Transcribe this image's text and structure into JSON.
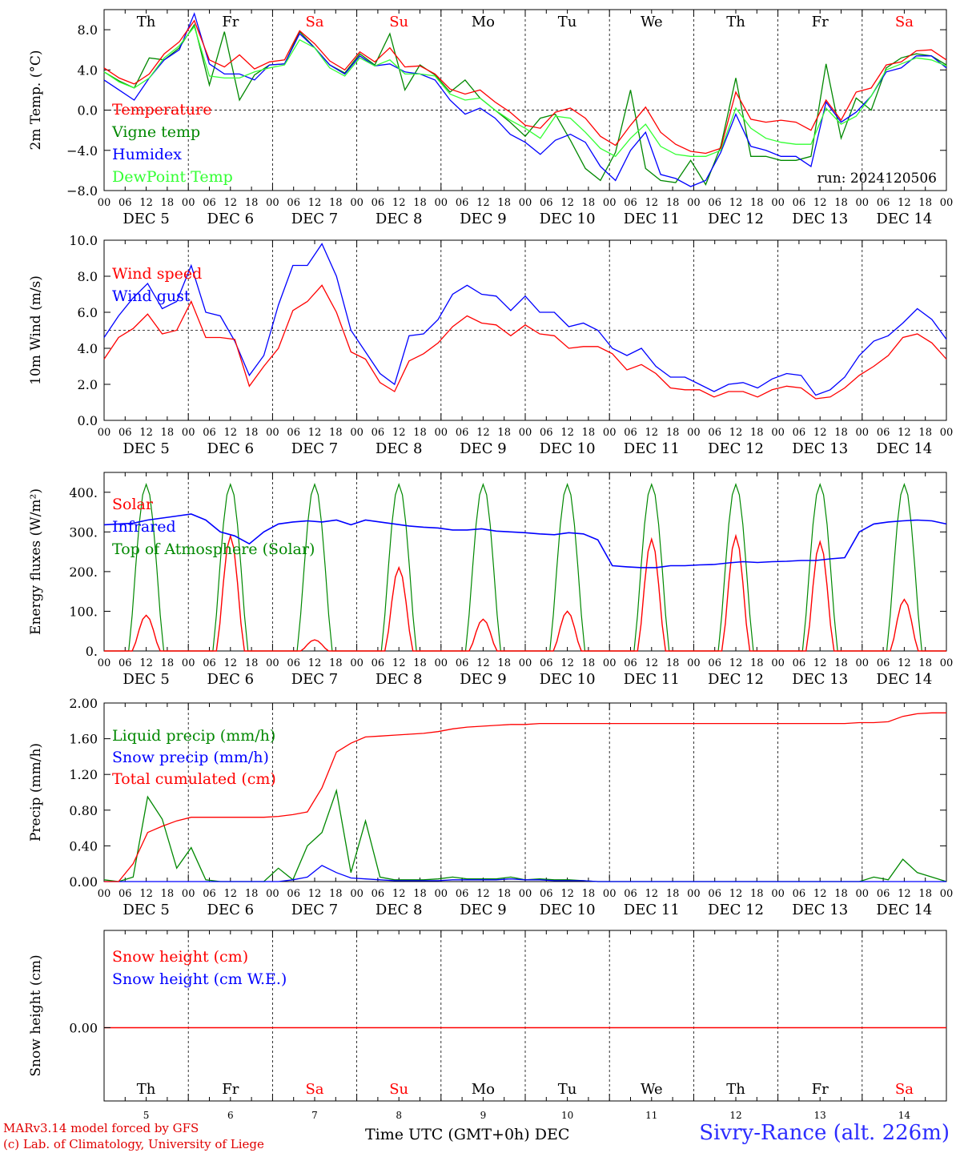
{
  "footer": {
    "credit1": "MARv3.14 model forced by GFS",
    "credit2": "(c) Lab. of Climatology, University of Liege",
    "time_label": "Time UTC (GMT+0h) DEC",
    "station": "Sivry-Rance (alt. 226m)"
  },
  "time_axis": {
    "hour_ticks": [
      "00",
      "06",
      "12",
      "18"
    ],
    "date_labels": [
      "DEC  5",
      "DEC  6",
      "DEC  7",
      "DEC  8",
      "DEC  9",
      "DEC 10",
      "DEC 11",
      "DEC 12",
      "DEC 13",
      "DEC 14"
    ],
    "weekdays": [
      "Th",
      "Fr",
      "Sa",
      "Su",
      "Mo",
      "Tu",
      "We",
      "Th",
      "Fr",
      "Sa"
    ],
    "weekday_colors": [
      "#000000",
      "#000000",
      "#ff0000",
      "#ff0000",
      "#000000",
      "#000000",
      "#000000",
      "#000000",
      "#000000",
      "#ff0000"
    ],
    "day_numbers": [
      "5",
      "6",
      "7",
      "8",
      "9",
      "10",
      "11",
      "12",
      "13",
      "14"
    ]
  },
  "colors": {
    "red": "#ff0000",
    "green": "#008800",
    "blue": "#0000ff",
    "lightgreen": "#33ff33"
  },
  "chart_data": [
    {
      "type": "line",
      "ylabel": "2m Temp. (°C)",
      "ylim": [
        -8,
        10
      ],
      "yticks": [
        "8.0",
        "4.0",
        "0.0",
        "−4.0",
        "−8.0"
      ],
      "ytick_values": [
        8,
        4,
        0,
        -4,
        -8
      ],
      "dashed_ref": 0,
      "annotation": "run: 2024120506",
      "x_hours_step": 6,
      "series": [
        {
          "name": "Temperature",
          "color": "#ff0000",
          "values": [
            4.2,
            3.2,
            2.6,
            3.6,
            5.6,
            6.8,
            8.9,
            5.0,
            4.3,
            5.5,
            4.1,
            4.8,
            5.0,
            7.9,
            6.6,
            4.9,
            4.0,
            5.8,
            4.8,
            6.2,
            4.3,
            4.4,
            3.6,
            2.1,
            1.6,
            2.0,
            0.8,
            -0.2,
            -1.5,
            -1.8,
            -0.2,
            0.2,
            -0.8,
            -2.6,
            -3.5,
            -1.5,
            0.3,
            -2.2,
            -3.4,
            -4.1,
            -4.3,
            -3.8,
            1.8,
            -0.9,
            -1.2,
            -1.0,
            -1.2,
            -2.0,
            1.0,
            -1.0,
            1.8,
            2.2,
            4.5,
            4.8,
            5.9,
            6.0,
            5.0
          ]
        },
        {
          "name": "Vigne temp",
          "color": "#008800",
          "values": [
            3.8,
            2.9,
            2.2,
            5.2,
            5.0,
            6.2,
            8.5,
            2.5,
            7.8,
            1.0,
            3.5,
            4.5,
            4.6,
            7.8,
            6.2,
            4.5,
            3.7,
            5.6,
            4.5,
            7.6,
            2.0,
            4.5,
            3.5,
            1.8,
            3.0,
            1.2,
            0.0,
            -1.2,
            -2.6,
            -0.8,
            -0.4,
            -3.0,
            -5.8,
            -7.0,
            -4.2,
            2.0,
            -5.8,
            -7.0,
            -7.2,
            -5.0,
            -7.4,
            -3.6,
            3.2,
            -4.6,
            -4.6,
            -5.0,
            -5.0,
            -4.6,
            4.6,
            -2.8,
            1.2,
            0.0,
            4.2,
            5.2,
            5.6,
            5.4,
            4.5
          ]
        },
        {
          "name": "Humidex",
          "color": "#0000ff",
          "values": [
            3.0,
            2.0,
            1.0,
            3.2,
            5.0,
            6.0,
            9.6,
            4.6,
            3.6,
            3.6,
            3.0,
            4.5,
            4.6,
            7.6,
            6.2,
            4.5,
            3.6,
            5.4,
            4.4,
            4.6,
            3.8,
            3.6,
            3.0,
            1.0,
            -0.4,
            0.2,
            -0.8,
            -2.4,
            -3.2,
            -4.4,
            -3.0,
            -2.4,
            -3.2,
            -5.6,
            -7.0,
            -4.0,
            -2.2,
            -6.4,
            -6.8,
            -7.6,
            -7.0,
            -4.2,
            -0.4,
            -3.6,
            -4.0,
            -4.6,
            -4.6,
            -5.6,
            0.8,
            -1.2,
            -0.2,
            1.4,
            3.8,
            4.2,
            5.4,
            5.4,
            4.2
          ]
        },
        {
          "name": "DewPoint Temp",
          "color": "#33ff33",
          "values": [
            3.8,
            2.8,
            2.2,
            3.2,
            5.2,
            6.4,
            8.3,
            3.4,
            3.2,
            3.2,
            3.8,
            4.2,
            4.5,
            7.0,
            6.2,
            4.2,
            3.4,
            5.2,
            4.4,
            5.0,
            3.6,
            3.6,
            3.4,
            1.6,
            1.0,
            1.2,
            0.0,
            -1.0,
            -1.8,
            -2.8,
            -0.6,
            -0.8,
            -2.2,
            -3.8,
            -4.6,
            -2.8,
            -1.4,
            -3.6,
            -4.4,
            -4.6,
            -4.6,
            -4.0,
            0.2,
            -1.8,
            -2.8,
            -3.2,
            -3.4,
            -3.4,
            0.2,
            -1.4,
            -0.6,
            1.4,
            4.0,
            4.6,
            5.2,
            5.0,
            4.4
          ]
        }
      ]
    },
    {
      "type": "line",
      "ylabel": "10m Wind (m/s)",
      "ylim": [
        0,
        10
      ],
      "yticks": [
        "10.0",
        "8.0",
        "6.0",
        "4.0",
        "2.0",
        "0.0"
      ],
      "ytick_values": [
        10,
        8,
        6,
        4,
        2,
        0
      ],
      "dashed_ref": 5,
      "x_hours_step": 6,
      "series": [
        {
          "name": "Wind speed",
          "color": "#ff0000",
          "values": [
            3.4,
            4.6,
            5.1,
            5.9,
            4.8,
            5.0,
            6.6,
            4.6,
            4.6,
            4.5,
            1.9,
            3.0,
            4.0,
            6.1,
            6.6,
            7.5,
            6.0,
            3.8,
            3.4,
            2.1,
            1.6,
            3.3,
            3.7,
            4.3,
            5.2,
            5.8,
            5.4,
            5.3,
            4.7,
            5.3,
            4.8,
            4.7,
            4.0,
            4.1,
            4.1,
            3.7,
            2.8,
            3.1,
            2.6,
            1.8,
            1.7,
            1.7,
            1.3,
            1.6,
            1.6,
            1.3,
            1.7,
            1.9,
            1.8,
            1.2,
            1.3,
            1.8,
            2.5,
            3.0,
            3.6,
            4.6,
            4.8,
            4.3,
            3.4
          ]
        },
        {
          "name": "Wind gust",
          "color": "#0000ff",
          "values": [
            4.6,
            5.8,
            6.8,
            7.6,
            6.2,
            6.6,
            8.6,
            6.0,
            5.8,
            4.4,
            2.5,
            3.6,
            6.4,
            8.6,
            8.6,
            9.8,
            8.0,
            5.0,
            3.8,
            2.6,
            2.0,
            4.7,
            4.8,
            5.6,
            7.0,
            7.5,
            7.0,
            6.9,
            6.1,
            6.9,
            6.0,
            6.0,
            5.2,
            5.4,
            5.0,
            4.0,
            3.6,
            4.0,
            3.0,
            2.4,
            2.4,
            2.0,
            1.6,
            2.0,
            2.1,
            1.8,
            2.3,
            2.6,
            2.5,
            1.4,
            1.7,
            2.4,
            3.6,
            4.4,
            4.7,
            5.4,
            6.2,
            5.6,
            4.5
          ]
        }
      ]
    },
    {
      "type": "line",
      "ylabel": "Energy fluxes (W/m²)",
      "ylim": [
        0,
        450
      ],
      "yticks": [
        "400.",
        "300.",
        "200.",
        "100.",
        "0."
      ],
      "ytick_values": [
        400,
        300,
        200,
        100,
        0
      ],
      "x_hours_step": 6,
      "series": [
        {
          "name": "Solar",
          "color": "#ff0000",
          "peaks": [
            {
              "day": 0,
              "value": 90
            },
            {
              "day": 1,
              "value": 290
            },
            {
              "day": 2,
              "value": 28
            },
            {
              "day": 3,
              "value": 210
            },
            {
              "day": 4,
              "value": 80
            },
            {
              "day": 5,
              "value": 100
            },
            {
              "day": 6,
              "value": 282
            },
            {
              "day": 7,
              "value": 290
            },
            {
              "day": 8,
              "value": 275
            },
            {
              "day": 9,
              "value": 130
            }
          ]
        },
        {
          "name": "Infrared",
          "color": "#0000ff",
          "values": [
            318,
            320,
            322,
            330,
            335,
            340,
            345,
            330,
            300,
            290,
            270,
            300,
            320,
            325,
            328,
            325,
            330,
            318,
            330,
            325,
            320,
            315,
            312,
            310,
            305,
            305,
            308,
            302,
            300,
            298,
            295,
            293,
            298,
            295,
            280,
            215,
            212,
            210,
            210,
            215,
            215,
            217,
            218,
            222,
            225,
            223,
            225,
            226,
            228,
            228,
            232,
            235,
            300,
            320,
            325,
            328,
            330,
            328,
            320
          ]
        },
        {
          "name": "Top of Atmosphere (Solar)",
          "color": "#008800",
          "peak": 420
        }
      ]
    },
    {
      "type": "line",
      "ylabel": "Precip (mm/h)",
      "ylim": [
        0,
        2
      ],
      "yticks": [
        "2.00",
        "1.60",
        "1.20",
        "0.80",
        "0.40",
        "0.00"
      ],
      "ytick_values": [
        2.0,
        1.6,
        1.2,
        0.8,
        0.4,
        0.0
      ],
      "x_hours_step": 6,
      "series": [
        {
          "name": "Liquid precip (mm/h)",
          "color": "#008800",
          "values": [
            0.02,
            0.0,
            0.05,
            0.95,
            0.7,
            0.15,
            0.38,
            0.02,
            0.0,
            0.0,
            0.0,
            0.0,
            0.15,
            0.02,
            0.4,
            0.55,
            1.02,
            0.1,
            0.68,
            0.05,
            0.02,
            0.02,
            0.02,
            0.03,
            0.05,
            0.03,
            0.03,
            0.03,
            0.05,
            0.02,
            0.03,
            0.02,
            0.02,
            0.01,
            0.0,
            0.0,
            0.0,
            0.0,
            0.0,
            0.0,
            0.0,
            0.0,
            0.0,
            0.0,
            0.0,
            0.0,
            0.0,
            0.0,
            0.0,
            0.0,
            0.0,
            0.0,
            0.0,
            0.05,
            0.02,
            0.25,
            0.1,
            0.05,
            0.0
          ]
        },
        {
          "name": "Snow precip (mm/h)",
          "color": "#0000ff",
          "values": [
            0.0,
            0.0,
            0.0,
            0.0,
            0.0,
            0.0,
            0.0,
            0.0,
            0.0,
            0.0,
            0.0,
            0.0,
            0.0,
            0.02,
            0.05,
            0.18,
            0.1,
            0.04,
            0.03,
            0.02,
            0.01,
            0.01,
            0.01,
            0.01,
            0.02,
            0.02,
            0.02,
            0.02,
            0.03,
            0.02,
            0.02,
            0.01,
            0.01,
            0.01,
            0.0,
            0.0,
            0.0,
            0.0,
            0.0,
            0.0,
            0.0,
            0.0,
            0.0,
            0.0,
            0.0,
            0.0,
            0.0,
            0.0,
            0.0,
            0.0,
            0.0,
            0.0,
            0.0,
            0.0,
            0.0,
            0.0,
            0.0,
            0.0,
            0.0
          ]
        },
        {
          "name": "Total cumulated (cm)",
          "color": "#ff0000",
          "values": [
            0.0,
            0.0,
            0.2,
            0.55,
            0.62,
            0.68,
            0.72,
            0.72,
            0.72,
            0.72,
            0.72,
            0.72,
            0.73,
            0.75,
            0.78,
            1.05,
            1.45,
            1.55,
            1.62,
            1.63,
            1.64,
            1.65,
            1.66,
            1.68,
            1.71,
            1.73,
            1.74,
            1.75,
            1.76,
            1.76,
            1.77,
            1.77,
            1.77,
            1.77,
            1.77,
            1.77,
            1.77,
            1.77,
            1.77,
            1.77,
            1.77,
            1.77,
            1.77,
            1.77,
            1.77,
            1.77,
            1.77,
            1.77,
            1.77,
            1.77,
            1.77,
            1.77,
            1.78,
            1.78,
            1.79,
            1.85,
            1.88,
            1.89,
            1.89
          ]
        }
      ]
    },
    {
      "type": "line",
      "ylabel": "Snow height (cm)",
      "yticks": [
        "0.00"
      ],
      "ytick_values": [
        0
      ],
      "series": [
        {
          "name": "Snow height (cm)",
          "color": "#ff0000",
          "values": [
            0,
            0
          ]
        },
        {
          "name": "Snow height (cm W.E.)",
          "color": "#0000ff",
          "values": [
            0,
            0
          ]
        }
      ]
    }
  ]
}
